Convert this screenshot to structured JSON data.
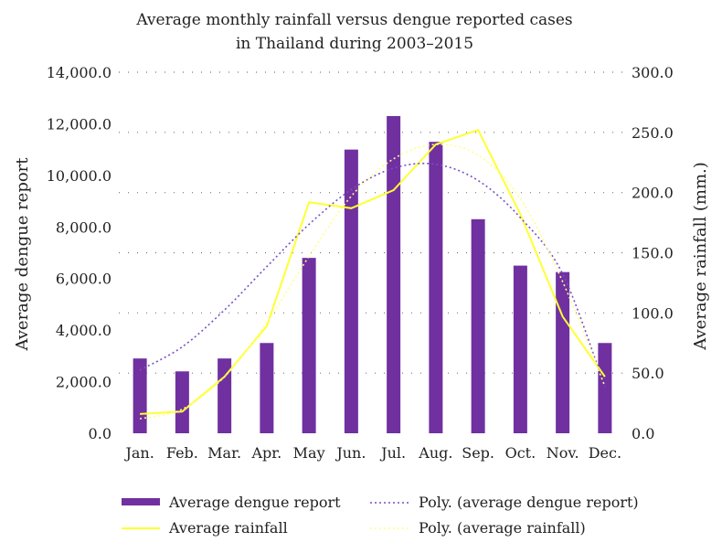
{
  "chart_data": {
    "type": "bar",
    "title": "Average monthly rainfall versus dengue reported cases in Thailand during 2003–2015",
    "title_lines": [
      "Average monthly rainfall versus dengue reported cases",
      "in Thailand during 2003–2015"
    ],
    "categories": [
      "Jan.",
      "Feb.",
      "Mar.",
      "Apr.",
      "May",
      "Jun.",
      "Jul.",
      "Aug.",
      "Sep.",
      "Oct.",
      "Nov.",
      "Dec."
    ],
    "ylabel": "Average dengue report",
    "y2label": "Average rainfall (mm.)",
    "ylim": [
      0,
      14000
    ],
    "y2lim": [
      0,
      300
    ],
    "yticks": [
      "0.0",
      "2,000.0",
      "4,000.0",
      "6,000.0",
      "8,000.0",
      "10,000.0",
      "12,000.0",
      "14,000.0"
    ],
    "y2ticks": [
      "0.0",
      "50.0",
      "100.0",
      "150.0",
      "200.0",
      "250.0",
      "300.0"
    ],
    "grid": true,
    "legend_position": "bottom",
    "series": [
      {
        "name": "Average dengue report",
        "kind": "bar",
        "axis": "left",
        "color": "#7030a0",
        "values": [
          2900,
          2400,
          2900,
          3500,
          6800,
          11000,
          12300,
          11300,
          8300,
          6500,
          6250,
          3500
        ]
      },
      {
        "name": "Average rainfall",
        "kind": "line",
        "axis": "right",
        "color": "#ffff33",
        "values": [
          16,
          18,
          47,
          89,
          192,
          187,
          202,
          240,
          252,
          182,
          97,
          47
        ]
      },
      {
        "name": "Poly. (average dengue report)",
        "kind": "trend",
        "axis": "left",
        "color": "#7a4fc4",
        "values": [
          2450,
          3350,
          4780,
          6460,
          8100,
          9450,
          10280,
          10430,
          9800,
          8360,
          6180,
          1800
        ]
      },
      {
        "name": "Poly. (average rainfall)",
        "kind": "trend",
        "axis": "right",
        "color": "#ffff88",
        "values": [
          12,
          20,
          47,
          92,
          147,
          197,
          228,
          240,
          231,
          195,
          126,
          39
        ]
      }
    ]
  }
}
